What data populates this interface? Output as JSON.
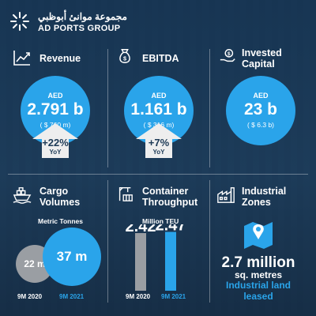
{
  "header": {
    "arabic_name": "مجموعة موانئ أبوظبي",
    "english_name": "AD PORTS GROUP"
  },
  "colors": {
    "accent": "#2aa4ea",
    "background": "#1d3a56",
    "grey_bar": "#9a9ea3",
    "arrow_fill": "#eeeeee"
  },
  "kpis": [
    {
      "title": "Revenue",
      "currency": "AED",
      "value": "2.791 b",
      "usd": "( $ 760 m)",
      "change": "+22%",
      "change_label": "YoY",
      "icon": "growth-chart-icon"
    },
    {
      "title": "EBITDA",
      "currency": "AED",
      "value": "1.161 b",
      "usd": "( $ 316 m)",
      "change": "+7%",
      "change_label": "YoY",
      "icon": "money-bag-icon"
    },
    {
      "title_line1": "Invested",
      "title_line2": "Capital",
      "currency": "AED",
      "value": "23 b",
      "usd": "( $ 6.3 b)",
      "icon": "hand-coin-icon"
    }
  ],
  "cargo": {
    "title_line1": "Cargo",
    "title_line2": "Volumes",
    "unit": "Metric Tonnes",
    "value_2020": "22 m",
    "value_2021": "37 m",
    "label_2020": "9M 2020",
    "label_2021": "9M 2021",
    "icon": "cargo-ship-icon"
  },
  "container": {
    "title_line1": "Container",
    "title_line2": "Throughput",
    "unit": "Million TEU",
    "value_2020": "2.42",
    "value_2021": "2.47",
    "label_2020": "9M 2020",
    "label_2021": "9M 2021",
    "icon": "crane-container-icon"
  },
  "industrial": {
    "title_line1": "Industrial",
    "title_line2": "Zones",
    "stat": "2.7 million",
    "stat_unit": "sq. metres",
    "line1": "Industrial land",
    "line2": "leased",
    "icon": "factory-icon",
    "map_icon": "map-pin-icon"
  },
  "chart_data": [
    {
      "type": "bar",
      "title": "Container Throughput",
      "ylabel": "Million TEU",
      "categories": [
        "9M 2020",
        "9M 2021"
      ],
      "values": [
        2.42,
        2.47
      ]
    }
  ]
}
